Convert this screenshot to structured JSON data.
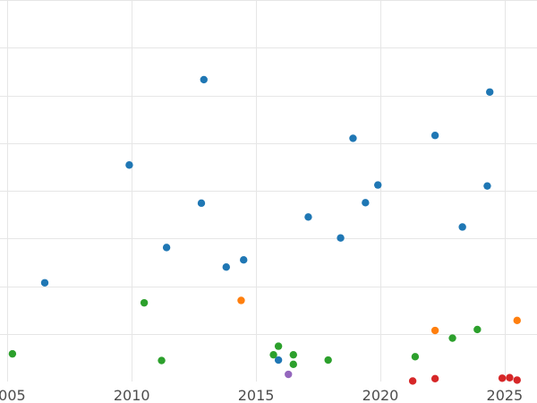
{
  "chart_data": {
    "type": "scatter",
    "title": "",
    "xlabel": "",
    "ylabel": "",
    "xlim": [
      2004.7,
      2026.3
    ],
    "ylim": [
      0,
      8
    ],
    "x_ticks": [
      2005,
      2010,
      2015,
      2020,
      2025
    ],
    "x_tick_labels": [
      "2005",
      "2010",
      "2015",
      "2020",
      "2025"
    ],
    "y_ticks": [
      1,
      2,
      3,
      4,
      5,
      6,
      7,
      8
    ],
    "y_tick_labels": [],
    "grid": true,
    "legend": "none",
    "series": [
      {
        "color": "#1f77b4",
        "points": [
          {
            "x": 2006.5,
            "y": 2.07
          },
          {
            "x": 2009.9,
            "y": 4.54
          },
          {
            "x": 2011.4,
            "y": 2.81
          },
          {
            "x": 2012.8,
            "y": 3.74
          },
          {
            "x": 2012.9,
            "y": 6.33
          },
          {
            "x": 2013.8,
            "y": 2.4
          },
          {
            "x": 2014.5,
            "y": 2.55
          },
          {
            "x": 2015.9,
            "y": 0.45
          },
          {
            "x": 2017.1,
            "y": 3.45
          },
          {
            "x": 2018.4,
            "y": 3.01
          },
          {
            "x": 2018.9,
            "y": 5.1
          },
          {
            "x": 2019.4,
            "y": 3.75
          },
          {
            "x": 2019.9,
            "y": 4.12
          },
          {
            "x": 2022.2,
            "y": 5.16
          },
          {
            "x": 2023.3,
            "y": 3.24
          },
          {
            "x": 2024.3,
            "y": 4.1
          },
          {
            "x": 2024.4,
            "y": 6.07
          }
        ]
      },
      {
        "color": "#ff7f0e",
        "points": [
          {
            "x": 2014.4,
            "y": 1.7
          },
          {
            "x": 2022.2,
            "y": 1.07
          },
          {
            "x": 2025.5,
            "y": 1.28
          }
        ]
      },
      {
        "color": "#2ca02c",
        "points": [
          {
            "x": 2005.2,
            "y": 0.58
          },
          {
            "x": 2010.5,
            "y": 1.65
          },
          {
            "x": 2011.2,
            "y": 0.44
          },
          {
            "x": 2015.7,
            "y": 0.56
          },
          {
            "x": 2015.9,
            "y": 0.74
          },
          {
            "x": 2016.5,
            "y": 0.36
          },
          {
            "x": 2016.5,
            "y": 0.56
          },
          {
            "x": 2017.9,
            "y": 0.45
          },
          {
            "x": 2021.4,
            "y": 0.52
          },
          {
            "x": 2022.9,
            "y": 0.91
          },
          {
            "x": 2023.9,
            "y": 1.09
          }
        ]
      },
      {
        "color": "#d62728",
        "points": [
          {
            "x": 2021.3,
            "y": 0.01
          },
          {
            "x": 2022.2,
            "y": 0.06
          },
          {
            "x": 2024.9,
            "y": 0.07
          },
          {
            "x": 2025.2,
            "y": 0.08
          },
          {
            "x": 2025.5,
            "y": 0.03
          }
        ]
      },
      {
        "color": "#9467bd",
        "points": [
          {
            "x": 2016.3,
            "y": 0.15
          }
        ]
      }
    ]
  }
}
